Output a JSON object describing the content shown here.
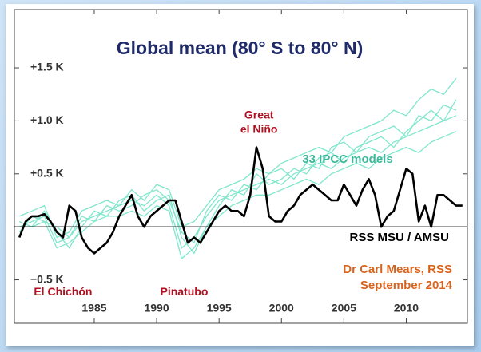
{
  "chart_data": {
    "type": "line",
    "title": "Global mean (80° S to 80° N)",
    "xlim": [
      1978.6,
      2014.9
    ],
    "ylim": [
      -0.91,
      2.05
    ],
    "xticks": [
      1985,
      1990,
      1995,
      2000,
      2005,
      2010
    ],
    "yticks": [
      {
        "value": -0.5,
        "label": "−0.5 K"
      },
      {
        "value": 0.5,
        "label": "+0.5 K"
      },
      {
        "value": 1.0,
        "label": "+1.0 K"
      },
      {
        "value": 1.5,
        "label": "+1.5 K"
      }
    ],
    "zero_line": 0,
    "model_runs": {
      "label": "33 IPCC models",
      "color": "#7fe6cc",
      "x": [
        1979,
        1980,
        1981,
        1982,
        1983,
        1984,
        1985,
        1986,
        1987,
        1988,
        1989,
        1990,
        1991,
        1992,
        1993,
        1994,
        1995,
        1996,
        1997,
        1998,
        1999,
        2000,
        2001,
        2002,
        2003,
        2004,
        2005,
        2006,
        2007,
        2008,
        2009,
        2010,
        2011,
        2012,
        2013,
        2014
      ],
      "runs": [
        [
          0.0,
          0.05,
          0.1,
          -0.15,
          -0.1,
          0.05,
          0.1,
          0.15,
          0.2,
          0.25,
          0.2,
          0.3,
          0.2,
          -0.2,
          -0.1,
          0.1,
          0.25,
          0.3,
          0.35,
          0.4,
          0.45,
          0.4,
          0.5,
          0.55,
          0.6,
          0.55,
          0.65,
          0.7,
          0.75,
          0.7,
          0.8,
          0.85,
          0.9,
          0.95,
          1.0,
          1.05
        ],
        [
          0.05,
          0.0,
          0.15,
          -0.05,
          -0.2,
          0.0,
          0.15,
          0.1,
          0.25,
          0.3,
          0.15,
          0.25,
          0.3,
          -0.1,
          -0.25,
          0.0,
          0.2,
          0.35,
          0.3,
          0.5,
          0.4,
          0.45,
          0.55,
          0.5,
          0.65,
          0.7,
          0.6,
          0.75,
          0.8,
          0.85,
          0.75,
          0.9,
          1.0,
          1.1,
          1.0,
          1.2
        ],
        [
          -0.05,
          0.1,
          0.05,
          0.0,
          -0.1,
          0.1,
          0.05,
          0.2,
          0.15,
          0.2,
          0.3,
          0.35,
          0.25,
          -0.05,
          -0.15,
          0.15,
          0.3,
          0.25,
          0.4,
          0.35,
          0.5,
          0.55,
          0.45,
          0.6,
          0.55,
          0.75,
          0.8,
          0.7,
          0.85,
          0.9,
          0.95,
          0.85,
          1.05,
          1.0,
          1.15,
          1.1
        ],
        [
          0.1,
          0.15,
          0.2,
          -0.1,
          -0.05,
          0.15,
          0.2,
          0.25,
          0.2,
          0.35,
          0.25,
          0.4,
          0.35,
          0.0,
          0.05,
          0.2,
          0.35,
          0.4,
          0.45,
          0.55,
          0.5,
          0.6,
          0.65,
          0.7,
          0.75,
          0.7,
          0.85,
          0.9,
          0.95,
          1.0,
          1.1,
          1.05,
          1.2,
          1.3,
          1.25,
          1.4
        ],
        [
          0.0,
          0.0,
          0.05,
          -0.2,
          -0.15,
          -0.05,
          0.05,
          0.1,
          0.1,
          0.15,
          0.1,
          0.2,
          0.15,
          -0.3,
          -0.2,
          0.0,
          0.1,
          0.2,
          0.25,
          0.3,
          0.3,
          0.35,
          0.4,
          0.45,
          0.4,
          0.5,
          0.55,
          0.6,
          0.55,
          0.65,
          0.7,
          0.75,
          0.7,
          0.8,
          0.85,
          0.9
        ]
      ]
    },
    "x": [
      1979,
      1979.5,
      1980,
      1980.5,
      1981,
      1981.5,
      1982,
      1982.5,
      1983,
      1983.5,
      1984,
      1984.5,
      1985,
      1985.5,
      1986,
      1986.5,
      1987,
      1987.5,
      1988,
      1988.5,
      1989,
      1989.5,
      1990,
      1990.5,
      1991,
      1991.5,
      1992,
      1992.5,
      1993,
      1993.5,
      1994,
      1994.5,
      1995,
      1995.5,
      1996,
      1996.5,
      1997,
      1997.5,
      1998,
      1998.5,
      1999,
      1999.5,
      2000,
      2000.5,
      2001,
      2001.5,
      2002,
      2002.5,
      2003,
      2003.5,
      2004,
      2004.5,
      2005,
      2005.5,
      2006,
      2006.5,
      2007,
      2007.5,
      2008,
      2008.5,
      2009,
      2009.5,
      2010,
      2010.5,
      2011,
      2011.5,
      2012,
      2012.5,
      2013,
      2013.5,
      2014,
      2014.5
    ],
    "series": [
      {
        "name": "RSS MSU / AMSU",
        "color": "#000000",
        "values": [
          -0.1,
          0.05,
          0.1,
          0.1,
          0.12,
          0.05,
          -0.05,
          -0.1,
          0.2,
          0.15,
          -0.1,
          -0.2,
          -0.25,
          -0.2,
          -0.15,
          -0.05,
          0.1,
          0.2,
          0.3,
          0.1,
          0.0,
          0.1,
          0.15,
          0.2,
          0.25,
          0.25,
          0.05,
          -0.15,
          -0.1,
          -0.15,
          -0.05,
          0.05,
          0.15,
          0.2,
          0.15,
          0.15,
          0.1,
          0.3,
          0.75,
          0.55,
          0.1,
          0.05,
          0.05,
          0.15,
          0.2,
          0.3,
          0.35,
          0.4,
          0.35,
          0.3,
          0.25,
          0.25,
          0.4,
          0.3,
          0.2,
          0.35,
          0.45,
          0.3,
          0.0,
          0.1,
          0.15,
          0.35,
          0.55,
          0.5,
          0.05,
          0.2,
          0.0,
          0.3,
          0.3,
          0.25,
          0.2,
          0.2
        ]
      }
    ],
    "annotations": [
      {
        "text": [
          "El Chichón"
        ],
        "x": 1982.5,
        "y": -0.62,
        "color": "#b01020"
      },
      {
        "text": [
          "Pinatubo"
        ],
        "x": 1992.2,
        "y": -0.62,
        "color": "#b01020"
      },
      {
        "text": [
          "Great",
          "el Niño"
        ],
        "x": 1998.2,
        "y": 1.05,
        "color": "#b01020"
      }
    ],
    "credit": [
      "Dr Carl Mears, RSS",
      "September 2014"
    ],
    "credit_color": "#d9641e"
  }
}
